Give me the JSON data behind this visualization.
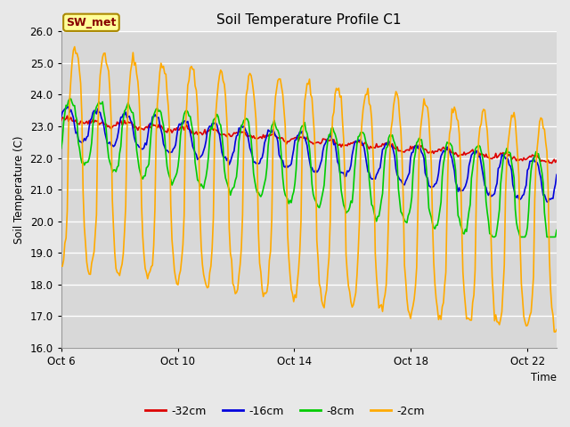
{
  "title": "Soil Temperature Profile C1",
  "xlabel": "Time",
  "ylabel": "Soil Temperature (C)",
  "ylim": [
    16.0,
    26.0
  ],
  "yticks": [
    16.0,
    17.0,
    18.0,
    19.0,
    20.0,
    21.0,
    22.0,
    23.0,
    24.0,
    25.0,
    26.0
  ],
  "xtick_labels": [
    "Oct 6",
    "Oct 10",
    "Oct 14",
    "Oct 18",
    "Oct 22"
  ],
  "xtick_positions": [
    0,
    4,
    8,
    12,
    16
  ],
  "xlim": [
    0,
    17
  ],
  "fig_bg_color": "#e8e8e8",
  "plot_bg_color": "#e8e8e8",
  "inner_bg_color": "#d8d8d8",
  "grid_color": "#ffffff",
  "legend_label": "SW_met",
  "legend_box_color": "#ffff99",
  "legend_box_edge": "#aa8800",
  "legend_text_color": "#880000",
  "series": {
    "-32cm": {
      "color": "#dd0000",
      "linewidth": 1.2
    },
    "-16cm": {
      "color": "#0000dd",
      "linewidth": 1.2
    },
    "-8cm": {
      "color": "#00cc00",
      "linewidth": 1.2
    },
    "-2cm": {
      "color": "#ffaa00",
      "linewidth": 1.2
    }
  },
  "num_points": 408,
  "duration_days": 17
}
